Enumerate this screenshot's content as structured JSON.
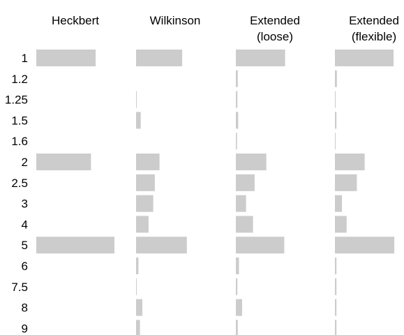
{
  "chart_data": {
    "type": "bar",
    "orientation": "horizontal",
    "layout": "small-multiples",
    "bar_color": "#cccccc",
    "background": "#ffffff",
    "grid": false,
    "panels": [
      {
        "title_lines": [
          "Heckbert"
        ]
      },
      {
        "title_lines": [
          "Wilkinson"
        ]
      },
      {
        "title_lines": [
          "Extended",
          "(loose)"
        ]
      },
      {
        "title_lines": [
          "Extended",
          "(flexible)"
        ]
      }
    ],
    "categories": [
      "1",
      "1.2",
      "1.25",
      "1.5",
      "1.6",
      "2",
      "2.5",
      "3",
      "4",
      "5",
      "6",
      "7.5",
      "8",
      "9"
    ],
    "series": [
      {
        "values": [
          0.76,
          0,
          0,
          0,
          0,
          0.7,
          0,
          0,
          0,
          1.0,
          0,
          0,
          0,
          0
        ]
      },
      {
        "values": [
          0.59,
          0,
          0.005,
          0.06,
          0,
          0.3,
          0.24,
          0.22,
          0.16,
          0.65,
          0.03,
          0.005,
          0.08,
          0.05
        ]
      },
      {
        "values": [
          0.63,
          0.025,
          0.02,
          0.03,
          0.015,
          0.39,
          0.24,
          0.13,
          0.22,
          0.62,
          0.04,
          0.02,
          0.08,
          0.025
        ]
      },
      {
        "values": [
          0.75,
          0.025,
          0.005,
          0.02,
          0.005,
          0.38,
          0.28,
          0.09,
          0.15,
          0.76,
          0.02,
          0.02,
          0.02,
          0.02
        ]
      }
    ]
  }
}
